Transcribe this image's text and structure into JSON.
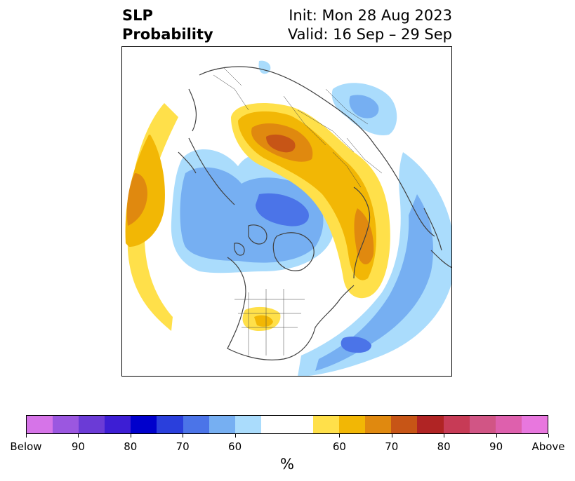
{
  "title": {
    "variable": "SLP",
    "product": "Probability",
    "init": "Init: Mon 28 Aug 2023",
    "valid": "Valid: 16 Sep – 29 Sep"
  },
  "colorbar": {
    "label": "%",
    "colors": [
      "#d674e8",
      "#9b57e0",
      "#6b3bd6",
      "#3d1ed4",
      "#0000cc",
      "#2a3fdc",
      "#4b74e8",
      "#76aff2",
      "#aadcfc",
      "#ffffff",
      "#ffffff",
      "#ffe04a",
      "#f2b705",
      "#e0890f",
      "#c75516",
      "#b02424",
      "#c73b56",
      "#d15585",
      "#de60ad",
      "#e877de"
    ],
    "ticks": [
      "Below",
      "90",
      "80",
      "70",
      "60",
      "60",
      "70",
      "80",
      "90",
      "Above"
    ]
  },
  "map": {
    "projection": "north-polar-stereographic",
    "levels": {
      "below_60": "#aadcfc",
      "below_70": "#76aff2",
      "below_80": "#4b74e8",
      "above_60": "#ffe04a",
      "above_70": "#f2b705",
      "above_80": "#e0890f",
      "above_90": "#c75516"
    },
    "coastline_color": "#404040"
  }
}
